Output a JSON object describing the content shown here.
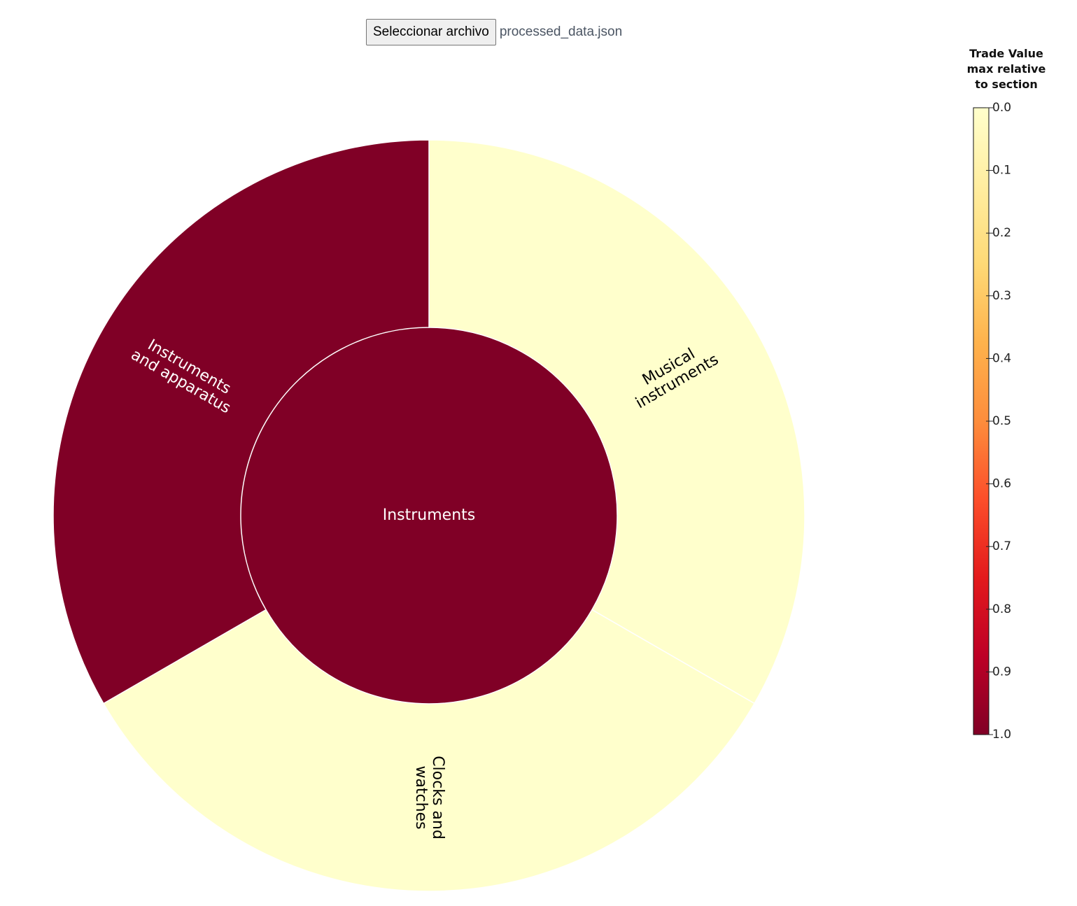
{
  "file_input": {
    "button_label": "Seleccionar archivo",
    "file_name": "processed_data.json"
  },
  "chart_data": {
    "type": "sunburst",
    "root": {
      "name": "Instruments",
      "color_value": 1.0
    },
    "children": [
      {
        "name": "Musical instruments",
        "label_lines": [
          "Musical",
          "instruments"
        ],
        "value": 0.333,
        "color_value": 0.0
      },
      {
        "name": "Clocks and watches",
        "label_lines": [
          "Clocks and",
          "watches"
        ],
        "value": 0.333,
        "color_value": 0.0
      },
      {
        "name": "Instruments and apparatus",
        "label_lines": [
          "Instruments",
          "and apparatus"
        ],
        "value": 0.333,
        "color_value": 1.0
      }
    ],
    "legend": {
      "title_lines": [
        "Trade Value",
        "max relative",
        "to section"
      ],
      "ticks": [
        "0.0",
        "0.1",
        "0.2",
        "0.3",
        "0.4",
        "0.5",
        "0.6",
        "0.7",
        "0.8",
        "0.9",
        "1.0"
      ],
      "domain": [
        0,
        1
      ],
      "colors": [
        "#ffffcc",
        "#ffeda0",
        "#fed976",
        "#feb24c",
        "#fd8d3c",
        "#fc4e2a",
        "#e31a1c",
        "#bd0026",
        "#800026"
      ]
    }
  }
}
